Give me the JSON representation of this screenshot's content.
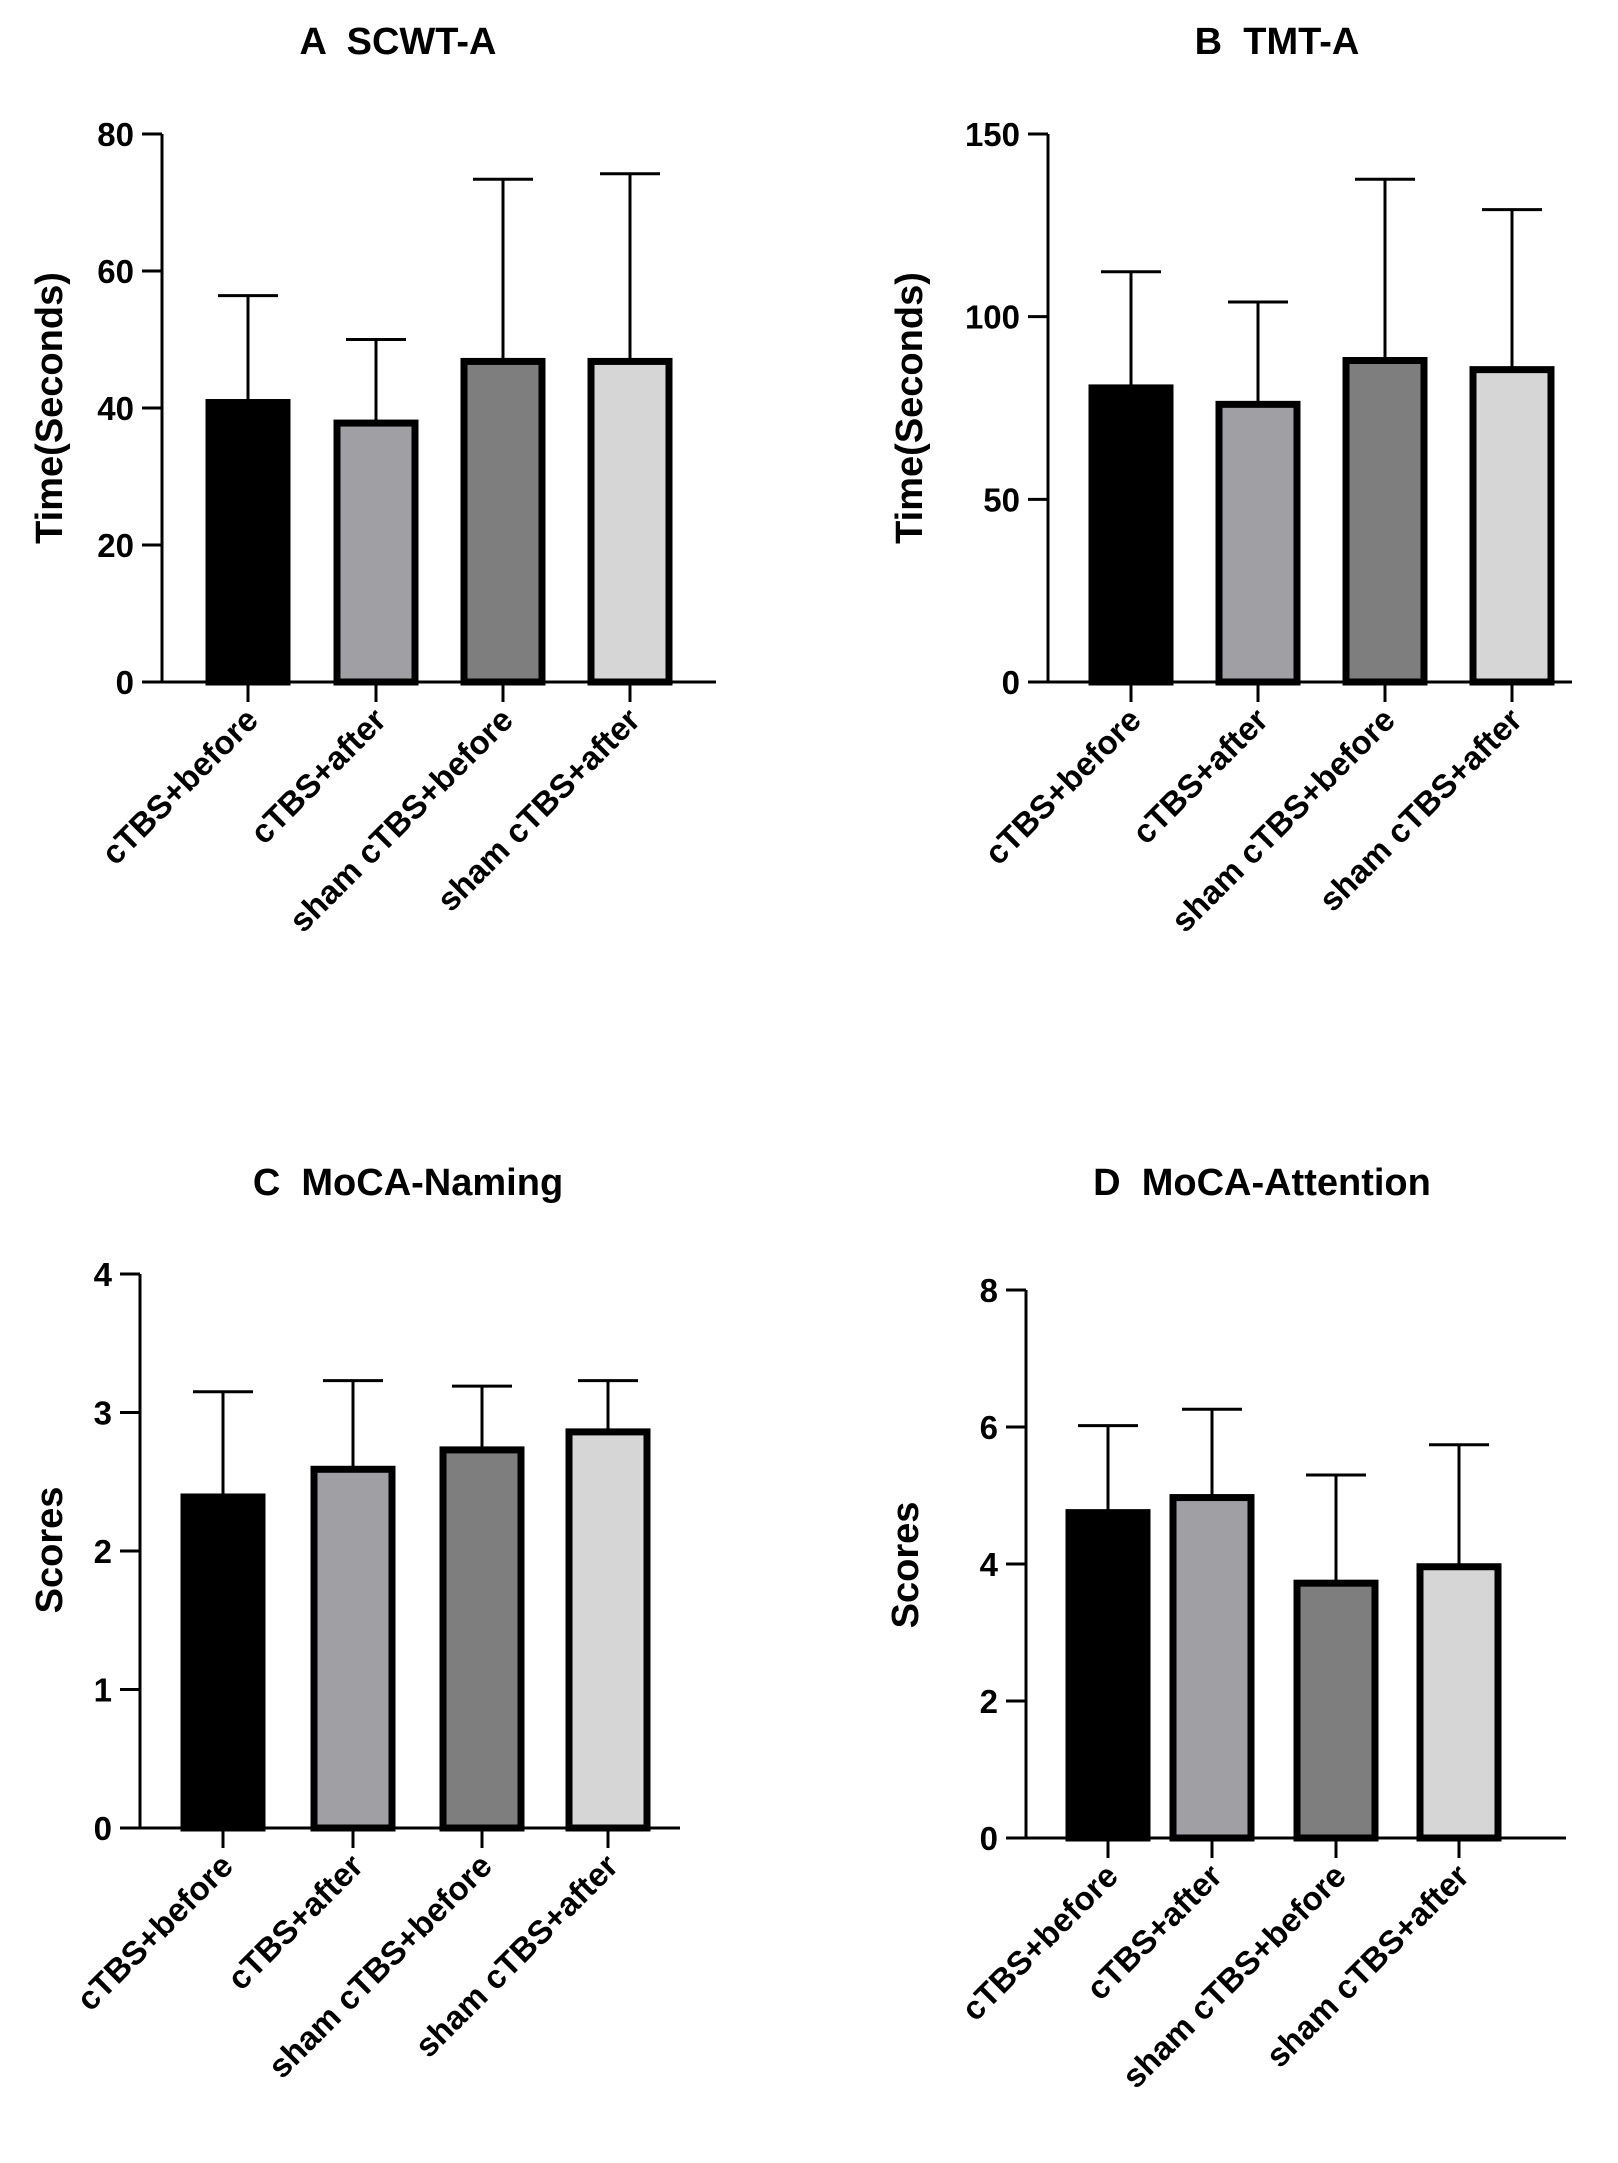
{
  "chart_data": [
    {
      "type": "bar",
      "title": "A  SCWT-A",
      "ylabel": "Time(Seconds)",
      "xlabel": "",
      "ylim": [
        0,
        80
      ],
      "yticks": [
        "0",
        "20",
        "40",
        "60",
        "80"
      ],
      "categories": [
        "cTBS+before",
        "cTBS+after",
        "sham cTBS+before",
        "sham cTBS+after"
      ],
      "values": [
        40.8,
        37.8,
        46.8,
        46.8
      ],
      "errors": [
        15.6,
        12.2,
        26.6,
        27.4
      ],
      "colors": [
        "#000000",
        "#a0a0a4",
        "#7e7e7e",
        "#d6d6d6"
      ]
    },
    {
      "type": "bar",
      "title": "B  TMT-A",
      "ylabel": "Time(Seconds)",
      "xlabel": "",
      "ylim": [
        0,
        150
      ],
      "yticks": [
        "0",
        "50",
        "100",
        "150"
      ],
      "categories": [
        "cTBS+before",
        "cTBS+after",
        "sham cTBS+before",
        "sham cTBS+after"
      ],
      "values": [
        80.5,
        76.0,
        88.0,
        85.5
      ],
      "errors": [
        31.8,
        28.0,
        49.6,
        43.8
      ],
      "colors": [
        "#000000",
        "#a0a0a4",
        "#7e7e7e",
        "#d6d6d6"
      ]
    },
    {
      "type": "bar",
      "title": "C  MoCA-Naming",
      "ylabel": "Scores",
      "xlabel": "",
      "ylim": [
        0,
        4
      ],
      "yticks": [
        "0",
        "1",
        "2",
        "3",
        "4"
      ],
      "categories": [
        "cTBS+before",
        "cTBS+after",
        "sham cTBS+before",
        "sham cTBS+after"
      ],
      "values": [
        2.39,
        2.59,
        2.73,
        2.86
      ],
      "errors": [
        0.76,
        0.64,
        0.46,
        0.37
      ],
      "colors": [
        "#000000",
        "#a0a0a4",
        "#7e7e7e",
        "#d6d6d6"
      ]
    },
    {
      "type": "bar",
      "title": "D  MoCA-Attention",
      "ylabel": "Scores",
      "xlabel": "",
      "ylim": [
        0,
        8
      ],
      "yticks": [
        "0",
        "2",
        "4",
        "6",
        "8"
      ],
      "categories": [
        "cTBS+before",
        "cTBS+after",
        "sham cTBS+before",
        "sham cTBS+after"
      ],
      "values": [
        4.75,
        4.97,
        3.72,
        3.96
      ],
      "errors": [
        1.27,
        1.29,
        1.58,
        1.78
      ],
      "colors": [
        "#000000",
        "#a0a0a4",
        "#7e7e7e",
        "#d6d6d6"
      ]
    }
  ]
}
